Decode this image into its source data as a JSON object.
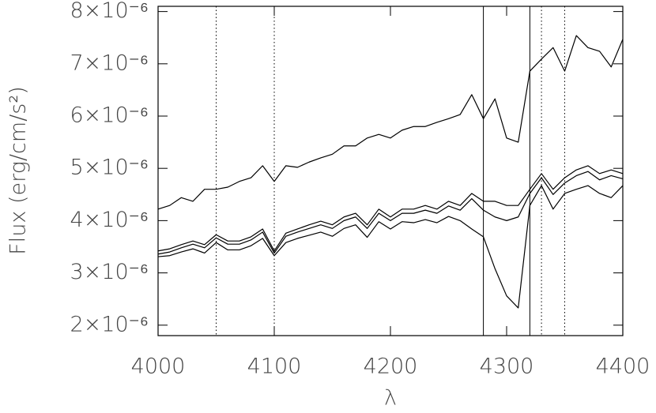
{
  "chart_data": {
    "type": "line",
    "xlabel": "λ",
    "ylabel": "Flux (erg/cm/s²)",
    "x": [
      4000,
      4010,
      4020,
      4030,
      4040,
      4050,
      4060,
      4070,
      4080,
      4090,
      4100,
      4110,
      4120,
      4130,
      4140,
      4150,
      4160,
      4170,
      4180,
      4190,
      4200,
      4210,
      4220,
      4230,
      4240,
      4250,
      4260,
      4270,
      4280,
      4290,
      4300,
      4310,
      4320,
      4330,
      4340,
      4350,
      4360,
      4370,
      4380,
      4390,
      4400
    ],
    "series": [
      {
        "color": "#000000",
        "values": [
          4.22e-06,
          4.29e-06,
          4.44e-06,
          4.37e-06,
          4.6e-06,
          4.6e-06,
          4.64e-06,
          4.75e-06,
          4.82e-06,
          5.05e-06,
          4.75e-06,
          5.05e-06,
          5.02e-06,
          5.12e-06,
          5.2e-06,
          5.27e-06,
          5.43e-06,
          5.43e-06,
          5.58e-06,
          5.65e-06,
          5.58e-06,
          5.73e-06,
          5.8e-06,
          5.8e-06,
          5.88e-06,
          5.95e-06,
          6.03e-06,
          6.41e-06,
          5.95e-06,
          6.33e-06,
          5.58e-06,
          5.5e-06,
          6.86e-06,
          7.09e-06,
          7.31e-06,
          6.86e-06,
          7.54e-06,
          7.31e-06,
          7.24e-06,
          6.94e-06,
          7.47e-06
        ]
      },
      {
        "color": "#000000",
        "values": [
          3.42e-06,
          3.46e-06,
          3.54e-06,
          3.61e-06,
          3.54e-06,
          3.73e-06,
          3.61e-06,
          3.61e-06,
          3.69e-06,
          3.84e-06,
          3.42e-06,
          3.76e-06,
          3.84e-06,
          3.92e-06,
          3.99e-06,
          3.92e-06,
          4.07e-06,
          4.14e-06,
          3.92e-06,
          4.22e-06,
          4.07e-06,
          4.22e-06,
          4.22e-06,
          4.29e-06,
          4.22e-06,
          4.37e-06,
          4.29e-06,
          4.52e-06,
          4.37e-06,
          4.37e-06,
          4.29e-06,
          4.29e-06,
          4.6e-06,
          4.9e-06,
          4.6e-06,
          4.82e-06,
          4.97e-06,
          5.05e-06,
          4.9e-06,
          4.97e-06,
          4.9e-06
        ]
      },
      {
        "color": "#000000",
        "values": [
          3.36e-06,
          3.4e-06,
          3.48e-06,
          3.55e-06,
          3.48e-06,
          3.67e-06,
          3.55e-06,
          3.55e-06,
          3.63e-06,
          3.78e-06,
          3.38e-06,
          3.7e-06,
          3.78e-06,
          3.85e-06,
          3.92e-06,
          3.85e-06,
          4e-06,
          4.07e-06,
          3.85e-06,
          4.14e-06,
          4e-06,
          4.14e-06,
          4.14e-06,
          4.2e-06,
          4.14e-06,
          4.28e-06,
          4.2e-06,
          4.42e-06,
          4.2e-06,
          4.07e-06,
          4e-06,
          4.07e-06,
          4.52e-06,
          4.82e-06,
          4.5e-06,
          4.72e-06,
          4.86e-06,
          4.94e-06,
          4.78e-06,
          4.86e-06,
          4.8e-06
        ]
      },
      {
        "color": "#000000",
        "values": [
          3.31e-06,
          3.33e-06,
          3.4e-06,
          3.46e-06,
          3.38e-06,
          3.58e-06,
          3.44e-06,
          3.44e-06,
          3.52e-06,
          3.66e-06,
          3.33e-06,
          3.58e-06,
          3.66e-06,
          3.72e-06,
          3.78e-06,
          3.7e-06,
          3.85e-06,
          3.92e-06,
          3.68e-06,
          3.98e-06,
          3.84e-06,
          3.98e-06,
          3.96e-06,
          4.02e-06,
          3.96e-06,
          4.08e-06,
          4e-06,
          3.84e-06,
          3.69e-06,
          3.08e-06,
          2.56e-06,
          2.33e-06,
          4.29e-06,
          4.67e-06,
          4.22e-06,
          4.52e-06,
          4.6e-06,
          4.67e-06,
          4.52e-06,
          4.44e-06,
          4.67e-06
        ]
      }
    ],
    "vlines": [
      {
        "x": 4050,
        "style": "dotted"
      },
      {
        "x": 4100,
        "style": "dotted"
      },
      {
        "x": 4280,
        "style": "solid"
      },
      {
        "x": 4320,
        "style": "solid"
      },
      {
        "x": 4330,
        "style": "dotted"
      },
      {
        "x": 4350,
        "style": "dotted"
      }
    ],
    "xlim": [
      4000,
      4400
    ],
    "xticks": [
      4000,
      4100,
      4200,
      4300,
      4400
    ],
    "ylim": [
      1.8e-06,
      8.1e-06
    ],
    "yticks": [
      {
        "value": 2e-06,
        "label": "2×10⁻⁶"
      },
      {
        "value": 3e-06,
        "label": "3×10⁻⁶"
      },
      {
        "value": 4e-06,
        "label": "4×10⁻⁶"
      },
      {
        "value": 5e-06,
        "label": "5×10⁻⁶"
      },
      {
        "value": 6e-06,
        "label": "6×10⁻⁶"
      },
      {
        "value": 7e-06,
        "label": "7×10⁻⁶"
      },
      {
        "value": 8e-06,
        "label": "8×10⁻⁶"
      }
    ]
  }
}
